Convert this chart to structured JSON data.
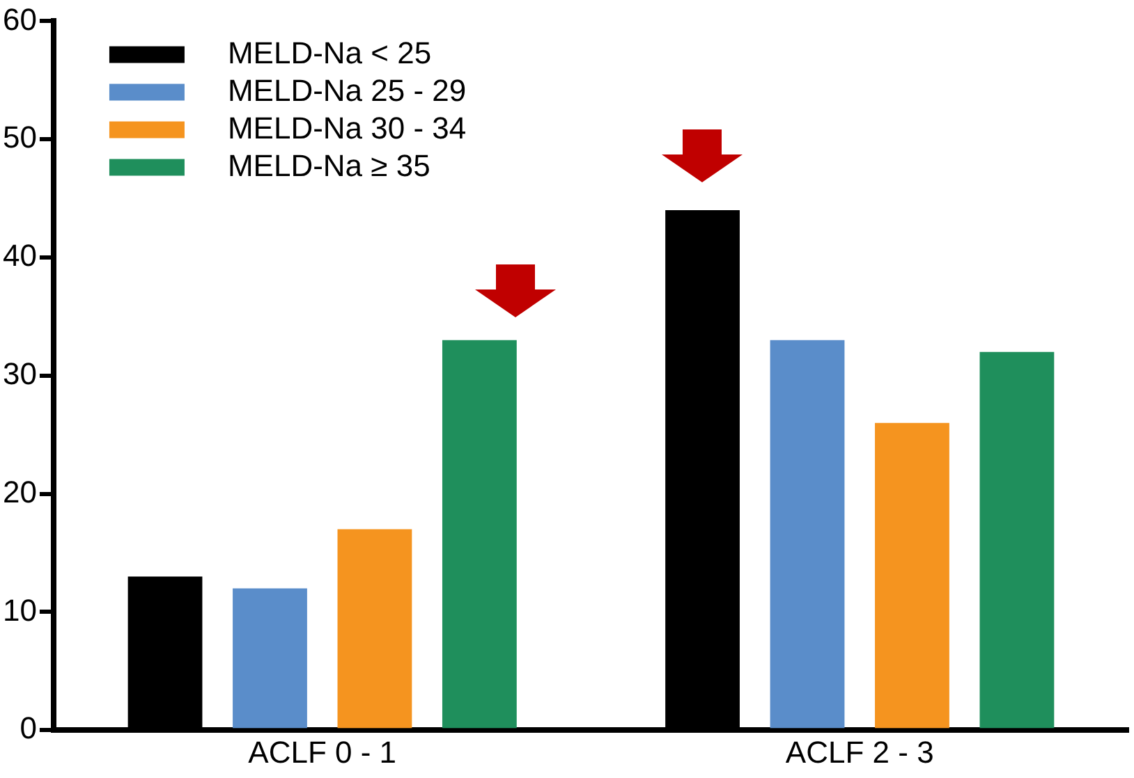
{
  "chart_data": {
    "type": "bar",
    "categories": [
      "ACLF 0 - 1",
      "ACLF 2 - 3"
    ],
    "series": [
      {
        "name": "MELD-Na < 25",
        "color": "#000000",
        "values": [
          13,
          44
        ]
      },
      {
        "name": "MELD-Na 25 - 29",
        "color": "#5a8dca",
        "values": [
          12,
          33
        ]
      },
      {
        "name": "MELD-Na 30 - 34",
        "color": "#f5941f",
        "values": [
          17,
          26
        ]
      },
      {
        "name": "MELD-Na ≥ 35",
        "color": "#1f8f5c",
        "values": [
          33,
          32
        ]
      }
    ],
    "ylim": [
      0,
      60
    ],
    "yticks": [
      0,
      10,
      20,
      30,
      40,
      50,
      60
    ],
    "grid": false,
    "legend": "top left"
  }
}
